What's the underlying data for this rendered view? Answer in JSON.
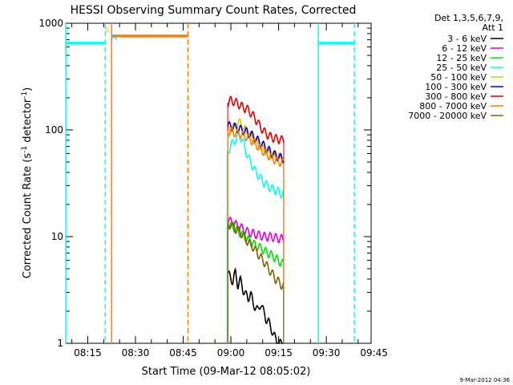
{
  "chart_data": {
    "type": "line",
    "title": "HESSI Observing Summary Count Rates, Corrected",
    "xlabel": "Start Time (09-Mar-12 08:05:02)",
    "ylabel_prefix": "Corrected Count Rate (s",
    "ylabel_sup": "-1",
    "ylabel_mid": " detector",
    "ylabel_sup2": "-1",
    "ylabel_suffix": ")",
    "y_scale": "log",
    "ylim": [
      1,
      1000
    ],
    "x_domain_minutes": [
      8.0833,
      104.0833
    ],
    "x_ticks": [
      {
        "m": 15,
        "label": "08:15"
      },
      {
        "m": 30,
        "label": "08:30"
      },
      {
        "m": 45,
        "label": "08:45"
      },
      {
        "m": 60,
        "label": "09:00"
      },
      {
        "m": 75,
        "label": "09:15"
      },
      {
        "m": 90,
        "label": "09:30"
      },
      {
        "m": 105,
        "label": "09:45"
      }
    ],
    "y_ticks": [
      {
        "v": 1,
        "label": "1"
      },
      {
        "v": 10,
        "label": "10"
      },
      {
        "v": 100,
        "label": "100"
      },
      {
        "v": 1000,
        "label": "1000"
      }
    ],
    "legend_header": [
      "Det 1,3,5,6,7,9,",
      "Att 1"
    ],
    "series": [
      {
        "name": "3 - 6 keV",
        "color": "#000000",
        "x": [
          59.0,
          59.8,
          60.6,
          61.4,
          62.2,
          63.0,
          63.8,
          64.6,
          65.4,
          66.2,
          67.0,
          67.8,
          68.6,
          69.4,
          70.2,
          71.0,
          71.8,
          72.6,
          73.4,
          74.2,
          75.0,
          75.8,
          76.6
        ],
        "y": [
          4.5,
          4.2,
          3.8,
          4.6,
          3.5,
          3.9,
          3.2,
          2.9,
          2.6,
          3.0,
          2.3,
          2.2,
          2.0,
          2.4,
          2.0,
          1.7,
          1.6,
          1.4,
          1.2,
          1.1,
          1.0,
          1.0,
          1.0
        ]
      },
      {
        "name": "6 - 12 keV",
        "color": "#e000e0",
        "x": [
          59.0,
          60.5,
          62.0,
          63.5,
          65.0,
          66.5,
          68.0,
          69.5,
          71.0,
          72.5,
          74.0,
          75.5,
          76.6
        ],
        "y": [
          14.5,
          13.5,
          12.8,
          12.0,
          11.2,
          10.8,
          10.5,
          10.2,
          10.0,
          10.0,
          9.8,
          9.6,
          9.5
        ]
      },
      {
        "name": "12 - 25 keV",
        "color": "#00e000",
        "x": [
          59.0,
          60.5,
          62.0,
          63.5,
          65.0,
          66.5,
          68.0,
          69.5,
          71.0,
          72.5,
          74.0,
          75.5,
          76.6
        ],
        "y": [
          13.0,
          12.5,
          11.5,
          10.5,
          9.6,
          8.8,
          8.2,
          7.8,
          7.2,
          6.8,
          6.3,
          5.8,
          5.5
        ]
      },
      {
        "name": "25 - 50 keV",
        "color": "#00ffff",
        "x": [
          58.8,
          59.5,
          60.5,
          61.5,
          62.5,
          63.5,
          64.5,
          65.5,
          66.5,
          67.5,
          68.5,
          70.0,
          71.5,
          73.0,
          74.5,
          76.0,
          76.6
        ],
        "y": [
          60,
          68,
          75,
          82,
          92,
          82,
          65,
          55,
          48,
          42,
          38,
          33,
          30,
          28,
          27,
          25,
          25
        ]
      },
      {
        "name": "50 - 100 keV",
        "color": "#e0c000",
        "x": [
          59.0,
          60.5,
          62.0,
          63.0,
          64.0,
          65.5,
          67.0,
          68.5,
          70.0,
          71.5,
          73.0,
          74.5,
          76.6
        ],
        "y": [
          100,
          105,
          112,
          118,
          104,
          93,
          82,
          74,
          67,
          62,
          58,
          56,
          55
        ]
      },
      {
        "name": "100 - 300 keV",
        "color": "#0000d0",
        "x": [
          59.0,
          60.5,
          62.0,
          63.5,
          65.0,
          66.5,
          68.0,
          69.5,
          71.0,
          72.5,
          74.0,
          75.5,
          76.6
        ],
        "y": [
          110,
          108,
          104,
          100,
          96,
          90,
          82,
          75,
          68,
          62,
          58,
          55,
          54
        ]
      },
      {
        "name": "300 - 800 keV",
        "color": "#e00000",
        "x": [
          59.0,
          60.0,
          61.0,
          62.0,
          63.0,
          64.0,
          65.0,
          66.0,
          67.5,
          69.0,
          70.5,
          72.0,
          73.5,
          75.0,
          76.6
        ],
        "y": [
          180,
          190,
          185,
          178,
          170,
          162,
          158,
          148,
          130,
          110,
          96,
          88,
          84,
          82,
          80
        ]
      },
      {
        "name": "800 - 7000 keV",
        "color": "#ff8000",
        "x": [
          59.0,
          60.5,
          62.0,
          63.5,
          65.0,
          66.5,
          68.0,
          69.5,
          71.0,
          72.5,
          74.0,
          75.5,
          76.6
        ],
        "y": [
          98,
          96,
          93,
          90,
          86,
          80,
          73,
          66,
          60,
          56,
          52,
          50,
          49
        ]
      },
      {
        "name": "7000 - 20000 keV",
        "color": "#806000",
        "x": [
          59.0,
          60.0,
          61.0,
          62.0,
          63.0,
          64.0,
          65.0,
          66.0,
          67.0,
          68.0,
          69.0,
          70.0,
          71.0,
          72.0,
          73.0,
          74.0,
          75.0,
          76.0,
          76.6
        ],
        "y": [
          12.5,
          13.2,
          12.0,
          11.6,
          11.0,
          10.2,
          9.2,
          8.6,
          8.0,
          7.2,
          6.6,
          6.0,
          5.5,
          4.9,
          4.5,
          4.0,
          3.8,
          3.5,
          3.4
        ]
      }
    ],
    "flags": [
      {
        "name": "cyan_left_bar",
        "color": "#00ffff",
        "x": [
          8.0833,
          20.5
        ],
        "y": 650
      },
      {
        "name": "orange_bar",
        "color": "#ff8000",
        "x": [
          22.5,
          46.5
        ],
        "y": 760
      },
      {
        "name": "cyan_right_bar",
        "color": "#00ffff",
        "x": [
          87.5,
          98.8
        ],
        "y": 650
      }
    ],
    "vlines": [
      {
        "x": 8.0833,
        "color": "#00ffff",
        "style": "solid"
      },
      {
        "x": 20.5,
        "color": "#00ffff",
        "style": "dashed"
      },
      {
        "x": 22.5,
        "color": "#ff8000",
        "style": "solid"
      },
      {
        "x": 46.5,
        "color": "#ff8000",
        "style": "dashed"
      },
      {
        "x": 87.5,
        "color": "#00ffff",
        "style": "solid"
      },
      {
        "x": 98.8,
        "color": "#00ffff",
        "style": "dashed"
      }
    ],
    "flag_letters": [
      {
        "text": "S",
        "color": "#e0c000",
        "x": 20.3,
        "y": 820
      },
      {
        "text": "N",
        "color": "#00e0e0",
        "x": 22.6,
        "y": 700
      }
    ]
  },
  "footer": {
    "timestamp": "9-Mar-2012 04:36"
  }
}
